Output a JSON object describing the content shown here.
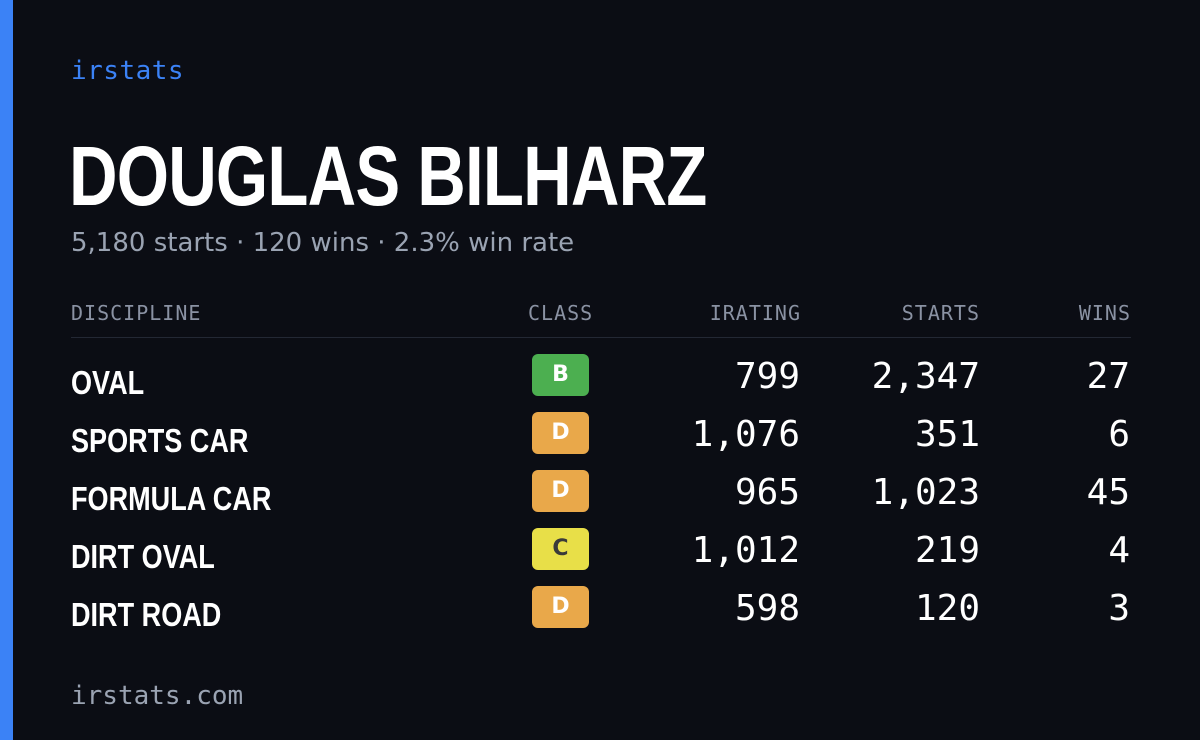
{
  "brand": "irstats",
  "driver_name": "DOUGLAS BILHARZ",
  "summary": "5,180 starts · 120 wins · 2.3% win rate",
  "table": {
    "headers": {
      "discipline": "DISCIPLINE",
      "class": "CLASS",
      "irating": "IRATING",
      "starts": "STARTS",
      "wins": "WINS"
    },
    "rows": [
      {
        "discipline": "OVAL",
        "class": "B",
        "irating": "799",
        "starts": "2,347",
        "wins": "27"
      },
      {
        "discipline": "SPORTS CAR",
        "class": "D",
        "irating": "1,076",
        "starts": "351",
        "wins": "6"
      },
      {
        "discipline": "FORMULA CAR",
        "class": "D",
        "irating": "965",
        "starts": "1,023",
        "wins": "45"
      },
      {
        "discipline": "DIRT OVAL",
        "class": "C",
        "irating": "1,012",
        "starts": "219",
        "wins": "4"
      },
      {
        "discipline": "DIRT ROAD",
        "class": "D",
        "irating": "598",
        "starts": "120",
        "wins": "3"
      }
    ]
  },
  "class_colors": {
    "B": "#4caf50",
    "C": "#e8df48",
    "D": "#e9a84a"
  },
  "class_text_colors": {
    "B": "#ffffff",
    "C": "#3a3a3a",
    "D": "#ffffff"
  },
  "colors": {
    "accent": "#3b82f6",
    "background": "#0b0d14",
    "muted_text": "#9aa3b2"
  },
  "footer": "irstats.com"
}
